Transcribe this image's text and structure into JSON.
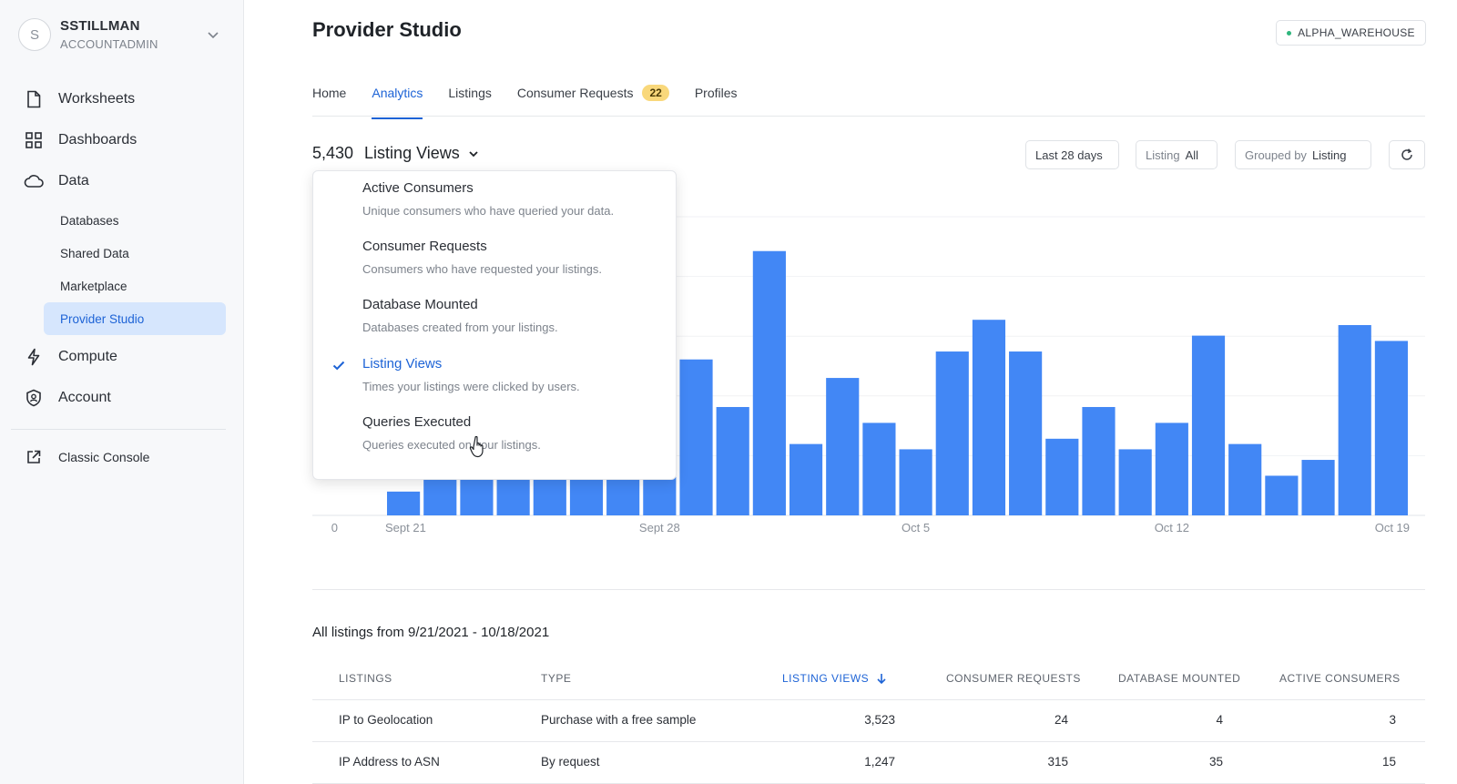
{
  "user": {
    "initial": "S",
    "name": "SSTILLMAN",
    "role": "ACCOUNTADMIN"
  },
  "nav": {
    "worksheets": "Worksheets",
    "dashboards": "Dashboards",
    "data": "Data",
    "data_sub": [
      "Databases",
      "Shared Data",
      "Marketplace",
      "Provider Studio"
    ],
    "compute": "Compute",
    "account": "Account",
    "classic": "Classic Console"
  },
  "header": {
    "title": "Provider Studio",
    "warehouse": "ALPHA_WAREHOUSE"
  },
  "tabs": [
    {
      "label": "Home"
    },
    {
      "label": "Analytics"
    },
    {
      "label": "Listings"
    },
    {
      "label": "Consumer Requests",
      "badge": "22"
    },
    {
      "label": "Profiles"
    }
  ],
  "metric": {
    "value": "5,430",
    "label": "Listing Views"
  },
  "filters": {
    "range": "Last 28 days",
    "listing_label": "Listing",
    "listing_value": "All",
    "group_label": "Grouped by",
    "group_value": "Listing"
  },
  "dropdown": [
    {
      "title": "Active Consumers",
      "desc": "Unique consumers who have queried your data."
    },
    {
      "title": "Consumer Requests",
      "desc": "Consumers who have requested your listings."
    },
    {
      "title": "Database Mounted",
      "desc": "Databases created from your listings."
    },
    {
      "title": "Listing Views",
      "desc": "Times your listings were clicked by users.",
      "selected": true
    },
    {
      "title": "Queries Executed",
      "desc": "Queries executed on your listings."
    }
  ],
  "chart_data": {
    "type": "bar",
    "metric": "Listing Views",
    "y_zero_label": "0",
    "x_tick_labels": [
      "Sept 21",
      "Sept 28",
      "Oct 5",
      "Oct 12",
      "Oct 19"
    ],
    "x_tick_index": [
      0,
      7,
      14,
      21,
      27
    ],
    "relative_values": [
      0.09,
      0.16,
      0.16,
      0.16,
      0.16,
      0.16,
      0.16,
      0.16,
      0.59,
      0.41,
      1.0,
      0.27,
      0.52,
      0.35,
      0.25,
      0.62,
      0.74,
      0.62,
      0.29,
      0.41,
      0.25,
      0.35,
      0.68,
      0.27,
      0.15,
      0.21,
      0.72,
      0.66
    ],
    "y_max_relative": 1.13,
    "color": "#4287f5"
  },
  "table": {
    "title": "All listings from 9/21/2021 - 10/18/2021",
    "columns": [
      "LISTINGS",
      "TYPE",
      "LISTING VIEWS",
      "CONSUMER REQUESTS",
      "DATABASE MOUNTED",
      "ACTIVE CONSUMERS"
    ],
    "rows": [
      [
        "IP to Geolocation",
        "Purchase with a free sample",
        "3,523",
        "24",
        "4",
        "3"
      ],
      [
        "IP Address to ASN",
        "By request",
        "1,247",
        "315",
        "35",
        "15"
      ]
    ]
  }
}
